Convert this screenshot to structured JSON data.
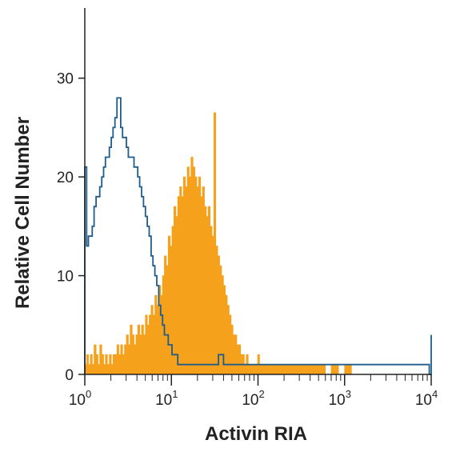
{
  "chart_data": {
    "type": "histogram",
    "title": "",
    "xlabel": "Activin RIA",
    "ylabel": "Relative Cell Number",
    "x_scale": "log",
    "xlim": [
      1,
      10000
    ],
    "ylim": [
      0,
      35
    ],
    "x_ticks": [
      {
        "base": "10",
        "exp": "0",
        "value": 1
      },
      {
        "base": "10",
        "exp": "1",
        "value": 10
      },
      {
        "base": "10",
        "exp": "2",
        "value": 100
      },
      {
        "base": "10",
        "exp": "3",
        "value": 1000
      },
      {
        "base": "10",
        "exp": "4",
        "value": 10000
      }
    ],
    "y_ticks": [
      {
        "label": "0",
        "value": 0
      },
      {
        "label": "10",
        "value": 10
      },
      {
        "label": "20",
        "value": 20
      },
      {
        "label": "30",
        "value": 30
      }
    ],
    "grid": false,
    "colors": {
      "filled": "#F5A11C",
      "outline": "#1F5C8A",
      "axis": "#222222"
    },
    "series": [
      {
        "style": "filled",
        "color": "#F5A11C",
        "points": [
          [
            1.0,
            1
          ],
          [
            1.05,
            2
          ],
          [
            1.1,
            1
          ],
          [
            1.16,
            2
          ],
          [
            1.22,
            1
          ],
          [
            1.28,
            3
          ],
          [
            1.35,
            2
          ],
          [
            1.42,
            1
          ],
          [
            1.49,
            3
          ],
          [
            1.57,
            2
          ],
          [
            1.65,
            1
          ],
          [
            1.73,
            2
          ],
          [
            1.82,
            1
          ],
          [
            1.92,
            2
          ],
          [
            2.02,
            1
          ],
          [
            2.12,
            2
          ],
          [
            2.23,
            2
          ],
          [
            2.35,
            3
          ],
          [
            2.47,
            2
          ],
          [
            2.6,
            3
          ],
          [
            2.73,
            2
          ],
          [
            2.87,
            3
          ],
          [
            3.02,
            4
          ],
          [
            3.18,
            3
          ],
          [
            3.34,
            5
          ],
          [
            3.52,
            4
          ],
          [
            3.7,
            3
          ],
          [
            3.89,
            4
          ],
          [
            4.09,
            5
          ],
          [
            4.3,
            4
          ],
          [
            4.53,
            5
          ],
          [
            4.76,
            4
          ],
          [
            5.01,
            6
          ],
          [
            5.27,
            5
          ],
          [
            5.54,
            6
          ],
          [
            5.83,
            7
          ],
          [
            6.13,
            6
          ],
          [
            6.45,
            8
          ],
          [
            6.79,
            7
          ],
          [
            7.14,
            9
          ],
          [
            7.51,
            8
          ],
          [
            7.9,
            10
          ],
          [
            8.31,
            12
          ],
          [
            8.74,
            11
          ],
          [
            9.19,
            14
          ],
          [
            9.67,
            13
          ],
          [
            10.17,
            15
          ],
          [
            10.7,
            17
          ],
          [
            11.25,
            16
          ],
          [
            11.84,
            18
          ],
          [
            12.45,
            19
          ],
          [
            13.1,
            18
          ],
          [
            13.78,
            20
          ],
          [
            14.49,
            19
          ],
          [
            15.24,
            21
          ],
          [
            16.03,
            20
          ],
          [
            16.87,
            22
          ],
          [
            17.74,
            21
          ],
          [
            18.66,
            20
          ],
          [
            19.63,
            19
          ],
          [
            20.65,
            20
          ],
          [
            21.72,
            18
          ],
          [
            22.85,
            19
          ],
          [
            24.04,
            17
          ],
          [
            25.28,
            16
          ],
          [
            26.59,
            17
          ],
          [
            27.97,
            15
          ],
          [
            29.42,
            14
          ],
          [
            30.95,
            26.5
          ],
          [
            32.56,
            13
          ],
          [
            34.25,
            12
          ],
          [
            36.03,
            11
          ],
          [
            37.9,
            10
          ],
          [
            39.86,
            9
          ],
          [
            41.93,
            8
          ],
          [
            44.11,
            7
          ],
          [
            46.4,
            6
          ],
          [
            48.81,
            5
          ],
          [
            51.34,
            4
          ],
          [
            54.0,
            4
          ],
          [
            56.8,
            3
          ],
          [
            59.75,
            3
          ],
          [
            62.85,
            2
          ],
          [
            66.11,
            2
          ],
          [
            69.54,
            1
          ],
          [
            73.15,
            2
          ],
          [
            76.95,
            1
          ],
          [
            80.95,
            1
          ],
          [
            85.15,
            1
          ],
          [
            89.57,
            1
          ],
          [
            94.22,
            1
          ],
          [
            99.1,
            2
          ],
          [
            104.2,
            1
          ],
          [
            110.0,
            1
          ],
          [
            130.0,
            1
          ],
          [
            160.0,
            1
          ],
          [
            200.0,
            1
          ],
          [
            250.0,
            1
          ],
          [
            300.0,
            1
          ],
          [
            350.0,
            1
          ],
          [
            400.0,
            1
          ],
          [
            450.0,
            1
          ],
          [
            500.0,
            1
          ],
          [
            600.0,
            0
          ],
          [
            700.0,
            1
          ],
          [
            850.0,
            0
          ],
          [
            1000.0,
            1
          ],
          [
            1200.0,
            0
          ],
          [
            1500.0,
            0
          ],
          [
            2000.0,
            0
          ],
          [
            3000.0,
            0
          ],
          [
            5000.0,
            0
          ],
          [
            10000.0,
            0
          ]
        ]
      },
      {
        "style": "outline",
        "color": "#1F5C8A",
        "points": [
          [
            1.0,
            21
          ],
          [
            1.05,
            13
          ],
          [
            1.1,
            14
          ],
          [
            1.16,
            14
          ],
          [
            1.22,
            15
          ],
          [
            1.28,
            17
          ],
          [
            1.35,
            18
          ],
          [
            1.42,
            18
          ],
          [
            1.49,
            19
          ],
          [
            1.57,
            20
          ],
          [
            1.65,
            21
          ],
          [
            1.73,
            22
          ],
          [
            1.82,
            22
          ],
          [
            1.92,
            23
          ],
          [
            2.02,
            24
          ],
          [
            2.12,
            25
          ],
          [
            2.23,
            26
          ],
          [
            2.35,
            28
          ],
          [
            2.47,
            28
          ],
          [
            2.6,
            25
          ],
          [
            2.73,
            24
          ],
          [
            2.87,
            24
          ],
          [
            3.02,
            23
          ],
          [
            3.18,
            22
          ],
          [
            3.34,
            22
          ],
          [
            3.52,
            22
          ],
          [
            3.7,
            21
          ],
          [
            3.89,
            21
          ],
          [
            4.09,
            20
          ],
          [
            4.3,
            19
          ],
          [
            4.53,
            18
          ],
          [
            4.76,
            17
          ],
          [
            5.01,
            16
          ],
          [
            5.27,
            15
          ],
          [
            5.54,
            14
          ],
          [
            5.83,
            12
          ],
          [
            6.13,
            11
          ],
          [
            6.45,
            10
          ],
          [
            6.79,
            9
          ],
          [
            7.14,
            7
          ],
          [
            7.51,
            6
          ],
          [
            7.9,
            5
          ],
          [
            8.31,
            4
          ],
          [
            8.74,
            4
          ],
          [
            9.19,
            3
          ],
          [
            9.67,
            3
          ],
          [
            10.17,
            2
          ],
          [
            10.7,
            2
          ],
          [
            11.25,
            2
          ],
          [
            11.84,
            1
          ],
          [
            12.45,
            1
          ],
          [
            13.1,
            1
          ],
          [
            14.0,
            1
          ],
          [
            15.0,
            1
          ],
          [
            16.0,
            1
          ],
          [
            18.0,
            1
          ],
          [
            20.0,
            1
          ],
          [
            22.0,
            1
          ],
          [
            25.0,
            1
          ],
          [
            28.0,
            1
          ],
          [
            30.0,
            1
          ],
          [
            35.0,
            2
          ],
          [
            40.0,
            1
          ],
          [
            45.0,
            1
          ],
          [
            50.0,
            1
          ],
          [
            60.0,
            1
          ],
          [
            70.0,
            1
          ],
          [
            80.0,
            1
          ],
          [
            100.0,
            1
          ],
          [
            130.0,
            1
          ],
          [
            160.0,
            1
          ],
          [
            200.0,
            1
          ],
          [
            250.0,
            1
          ],
          [
            300.0,
            1
          ],
          [
            350.0,
            1
          ],
          [
            400.0,
            1
          ],
          [
            450.0,
            1
          ],
          [
            500.0,
            1
          ],
          [
            600.0,
            1
          ],
          [
            700.0,
            1
          ],
          [
            850.0,
            1
          ],
          [
            1000.0,
            1
          ],
          [
            1200.0,
            1
          ],
          [
            1500.0,
            1
          ],
          [
            1800.0,
            1
          ],
          [
            2000.0,
            1
          ],
          [
            2500.0,
            1
          ],
          [
            3000.0,
            1
          ],
          [
            3500.0,
            1
          ],
          [
            4000.0,
            1
          ],
          [
            4500.0,
            1
          ],
          [
            5000.0,
            1
          ],
          [
            6000.0,
            1
          ],
          [
            7000.0,
            1
          ],
          [
            8000.0,
            1
          ],
          [
            9000.0,
            1
          ],
          [
            9500.0,
            0
          ],
          [
            10000.0,
            4
          ]
        ]
      }
    ]
  }
}
